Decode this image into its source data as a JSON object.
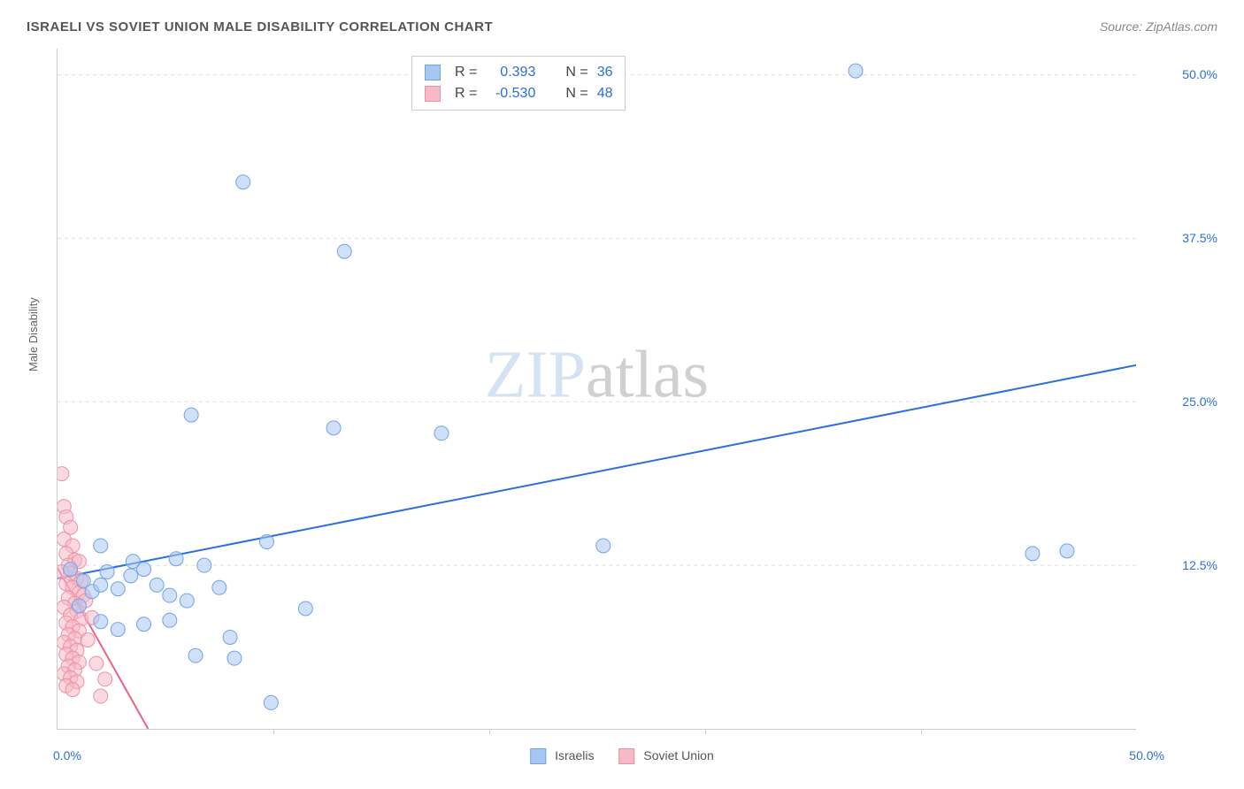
{
  "title": "ISRAELI VS SOVIET UNION MALE DISABILITY CORRELATION CHART",
  "source": "Source: ZipAtlas.com",
  "ylabel": "Male Disability",
  "watermark_a": "ZIP",
  "watermark_b": "atlas",
  "chart": {
    "type": "scatter",
    "background_color": "#ffffff",
    "grid_color": "#dddddd",
    "border_color": "#cccccc",
    "xlim": [
      0,
      50
    ],
    "ylim": [
      0,
      52
    ],
    "xtick_labels_shown": [
      "0.0%",
      "50.0%"
    ],
    "ytick_major": [
      12.5,
      25.0,
      37.5,
      50.0
    ],
    "ytick_labels": [
      "12.5%",
      "25.0%",
      "37.5%",
      "50.0%"
    ],
    "xtick_minor_step": 10,
    "label_color": "#2a6fdb",
    "label_fontsize": 14,
    "title_color": "#555555",
    "title_fontsize": 15,
    "marker_radius": 8,
    "marker_opacity": 0.55,
    "line_width": 2,
    "series": {
      "israelis": {
        "label": "Israelis",
        "color_fill": "#a7c7f2",
        "color_stroke": "#6fa3e8",
        "line_color": "#2a6fdb",
        "r_value": "0.393",
        "n_value": "36",
        "trend": {
          "x1": 0,
          "y1": 11.5,
          "x2": 50,
          "y2": 27.8
        },
        "points": [
          [
            37.0,
            50.3
          ],
          [
            8.6,
            41.8
          ],
          [
            13.3,
            36.5
          ],
          [
            6.2,
            24.0
          ],
          [
            12.8,
            23.0
          ],
          [
            17.8,
            22.6
          ],
          [
            8.2,
            5.4
          ],
          [
            6.4,
            5.6
          ],
          [
            9.9,
            2.0
          ],
          [
            0.6,
            12.2
          ],
          [
            1.2,
            11.3
          ],
          [
            1.6,
            10.5
          ],
          [
            2.0,
            11.0
          ],
          [
            2.3,
            12.0
          ],
          [
            2.8,
            10.7
          ],
          [
            3.4,
            11.7
          ],
          [
            3.5,
            12.8
          ],
          [
            4.0,
            12.2
          ],
          [
            4.6,
            11.0
          ],
          [
            5.2,
            10.2
          ],
          [
            5.5,
            13.0
          ],
          [
            6.0,
            9.8
          ],
          [
            6.8,
            12.5
          ],
          [
            7.5,
            10.8
          ],
          [
            2.0,
            14.0
          ],
          [
            9.7,
            14.3
          ],
          [
            11.5,
            9.2
          ],
          [
            8.0,
            7.0
          ],
          [
            5.2,
            8.3
          ],
          [
            4.0,
            8.0
          ],
          [
            2.8,
            7.6
          ],
          [
            2.0,
            8.2
          ],
          [
            25.3,
            14.0
          ],
          [
            45.2,
            13.4
          ],
          [
            46.8,
            13.6
          ],
          [
            1.0,
            9.4
          ]
        ]
      },
      "soviet": {
        "label": "Soviet Union",
        "color_fill": "#f6b9c6",
        "color_stroke": "#ee8fa5",
        "line_color": "#ee5f84",
        "r_value": "-0.530",
        "n_value": "48",
        "trend": {
          "x1": 0,
          "y1": 12.3,
          "x2": 4.2,
          "y2": 0
        },
        "points": [
          [
            0.2,
            19.5
          ],
          [
            0.3,
            17.0
          ],
          [
            0.4,
            16.2
          ],
          [
            0.6,
            15.4
          ],
          [
            0.3,
            14.5
          ],
          [
            0.7,
            14.0
          ],
          [
            0.4,
            13.4
          ],
          [
            0.8,
            12.9
          ],
          [
            0.5,
            12.5
          ],
          [
            1.0,
            12.8
          ],
          [
            0.6,
            11.9
          ],
          [
            0.9,
            11.5
          ],
          [
            0.4,
            11.1
          ],
          [
            1.1,
            11.3
          ],
          [
            0.7,
            10.8
          ],
          [
            1.0,
            10.4
          ],
          [
            0.5,
            10.0
          ],
          [
            1.2,
            10.2
          ],
          [
            0.8,
            9.6
          ],
          [
            0.3,
            9.3
          ],
          [
            0.9,
            9.0
          ],
          [
            0.6,
            8.7
          ],
          [
            1.1,
            8.4
          ],
          [
            0.4,
            8.1
          ],
          [
            0.7,
            7.8
          ],
          [
            1.0,
            7.5
          ],
          [
            0.5,
            7.2
          ],
          [
            0.8,
            6.9
          ],
          [
            0.3,
            6.6
          ],
          [
            0.6,
            6.3
          ],
          [
            0.9,
            6.0
          ],
          [
            0.4,
            5.7
          ],
          [
            0.7,
            5.4
          ],
          [
            1.0,
            5.1
          ],
          [
            0.5,
            4.8
          ],
          [
            0.8,
            4.5
          ],
          [
            0.3,
            4.2
          ],
          [
            0.6,
            3.9
          ],
          [
            0.9,
            3.6
          ],
          [
            0.4,
            3.3
          ],
          [
            0.7,
            3.0
          ],
          [
            2.2,
            3.8
          ],
          [
            2.0,
            2.5
          ],
          [
            1.4,
            6.8
          ],
          [
            1.6,
            8.5
          ],
          [
            1.3,
            9.8
          ],
          [
            1.8,
            5.0
          ],
          [
            0.2,
            12.0
          ]
        ]
      }
    }
  },
  "legend_top": {
    "r_label": "R =",
    "n_label": "N ="
  }
}
